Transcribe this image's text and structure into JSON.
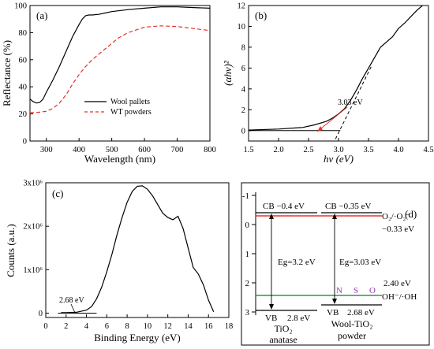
{
  "chart_data": [
    {
      "panel": "(a)",
      "type": "line",
      "xlabel": "Wavelength (nm)",
      "ylabel": "Reflectance (%)",
      "xlim": [
        250,
        800
      ],
      "ylim": [
        0,
        100
      ],
      "xticks": [
        300,
        400,
        500,
        600,
        700,
        800
      ],
      "yticks": [
        0,
        20,
        40,
        60,
        80,
        100
      ],
      "legend": "center-bottom",
      "series": [
        {
          "name": "Wool pallets",
          "color": "#000000",
          "style": "solid",
          "x": [
            250,
            260,
            270,
            280,
            290,
            300,
            320,
            340,
            360,
            380,
            400,
            410,
            420,
            430,
            440,
            460,
            480,
            500,
            550,
            600,
            650,
            700,
            750,
            800
          ],
          "y": [
            31,
            29,
            28,
            28.5,
            31,
            36,
            45,
            55,
            66,
            77,
            86,
            90,
            92.5,
            93,
            93,
            93.5,
            94.5,
            95.5,
            97,
            98,
            99,
            99,
            98.5,
            98
          ]
        },
        {
          "name": "WT powders",
          "color": "#e8302a",
          "style": "dashed",
          "x": [
            250,
            270,
            300,
            320,
            340,
            360,
            380,
            400,
            420,
            440,
            460,
            480,
            500,
            520,
            550,
            600,
            650,
            700,
            750,
            800
          ],
          "y": [
            21,
            21,
            22,
            24,
            28,
            34,
            42,
            49,
            55,
            60,
            64,
            68,
            72,
            76,
            80,
            84,
            85,
            84.5,
            83,
            81.5
          ]
        }
      ]
    },
    {
      "panel": "(b)",
      "type": "line",
      "xlabel": "hν (eV)",
      "ylabel": "(αhν)²",
      "xlim": [
        1.5,
        4.5
      ],
      "ylim": [
        -1,
        12
      ],
      "xticks": [
        1.5,
        2.0,
        2.5,
        3.0,
        3.5,
        4.0,
        4.5
      ],
      "yticks": [
        0,
        2,
        4,
        6,
        8,
        10,
        12
      ],
      "annotation": "3.03 eV",
      "series": [
        {
          "name": "",
          "color": "#000000",
          "style": "solid",
          "x": [
            1.5,
            2.0,
            2.4,
            2.6,
            2.8,
            2.9,
            3.0,
            3.1,
            3.2,
            3.3,
            3.4,
            3.5,
            3.6,
            3.7,
            3.8,
            3.9,
            4.0,
            4.1,
            4.2,
            4.3,
            4.4
          ],
          "y": [
            0.05,
            0.15,
            0.3,
            0.55,
            0.9,
            1.2,
            1.6,
            2.1,
            2.9,
            3.9,
            5.0,
            6.0,
            7.0,
            8.0,
            8.5,
            9.0,
            9.8,
            10.3,
            10.9,
            11.5,
            12.0
          ]
        }
      ],
      "baseline": {
        "x": [
          1.5,
          3.03
        ],
        "y": [
          0,
          0
        ]
      },
      "tangent": {
        "x": [
          2.95,
          3.55
        ],
        "y": [
          -0.8,
          6.2
        ]
      }
    },
    {
      "panel": "(c)",
      "type": "line",
      "xlabel": "Binding Energy (eV)",
      "ylabel": "Counts (a.u.)",
      "xlim": [
        0,
        18
      ],
      "ylim": [
        -100000,
        3000000
      ],
      "xticks": [
        0,
        2,
        4,
        6,
        8,
        10,
        12,
        14,
        16,
        18
      ],
      "yticks": [
        0,
        1000000,
        2000000,
        3000000
      ],
      "ytick_labels": [
        "0",
        "1x10⁶",
        "2x10⁶",
        "3x10⁶"
      ],
      "annotation": "2.68 eV",
      "series": [
        {
          "name": "",
          "color": "#000000",
          "style": "solid",
          "x": [
            1.5,
            2,
            3,
            4,
            4.5,
            5,
            5.5,
            6,
            6.5,
            7,
            7.5,
            8,
            8.5,
            9,
            9.5,
            10,
            10.5,
            11,
            11.5,
            12,
            12.5,
            13,
            13.5,
            14,
            14.5,
            15,
            15.5,
            16,
            16.5
          ],
          "y": [
            10000,
            12000,
            20000,
            70000,
            150000,
            330000,
            600000,
            950000,
            1350000,
            1800000,
            2200000,
            2550000,
            2800000,
            2920000,
            2930000,
            2850000,
            2700000,
            2500000,
            2300000,
            2200000,
            2150000,
            2230000,
            1950000,
            1500000,
            1050000,
            900000,
            650000,
            300000,
            30000
          ]
        }
      ],
      "baseline": {
        "x": [
          1.2,
          5
        ],
        "y": [
          0,
          0
        ]
      }
    },
    {
      "panel": "(d)",
      "type": "diagram",
      "ylim": [
        -1,
        3
      ],
      "yticks": [
        -1,
        0,
        1,
        2,
        3
      ],
      "ytick_labels": [
        "-1",
        "0",
        "1",
        "2",
        "3"
      ],
      "labels": {
        "cb_left": "CB −0.4 eV",
        "cb_right": "CB −0.35 eV",
        "o2_label": "O₂/·O₂⁻",
        "o2_value": "−0.33 eV",
        "eg_left": "Eg=3.2 eV",
        "eg_right": "Eg=3.03 eV",
        "oh_value": "2.40 eV",
        "oh_label": "OH⁻/·OH",
        "vb_left_a": "VB",
        "vb_left_b": "2.8 eV",
        "vb_right_a": "VB",
        "vb_right_b": "2.68 eV",
        "dopant_n": "N",
        "dopant_s": "S",
        "dopant_o": "O",
        "name_left_a": "TiO₂",
        "name_left_b": "anatase",
        "name_right_a": "Wool-TiO₂",
        "name_right_b": "powder"
      },
      "levels": {
        "cb_left": -0.4,
        "vb_left": 2.8,
        "cb_right": -0.35,
        "vb_right": 2.68,
        "o2": -0.33,
        "oh": 2.4
      },
      "colors": {
        "o2": "#e8302a",
        "oh": "#2a9a3a",
        "dopant": "#9a3ab0"
      }
    }
  ]
}
